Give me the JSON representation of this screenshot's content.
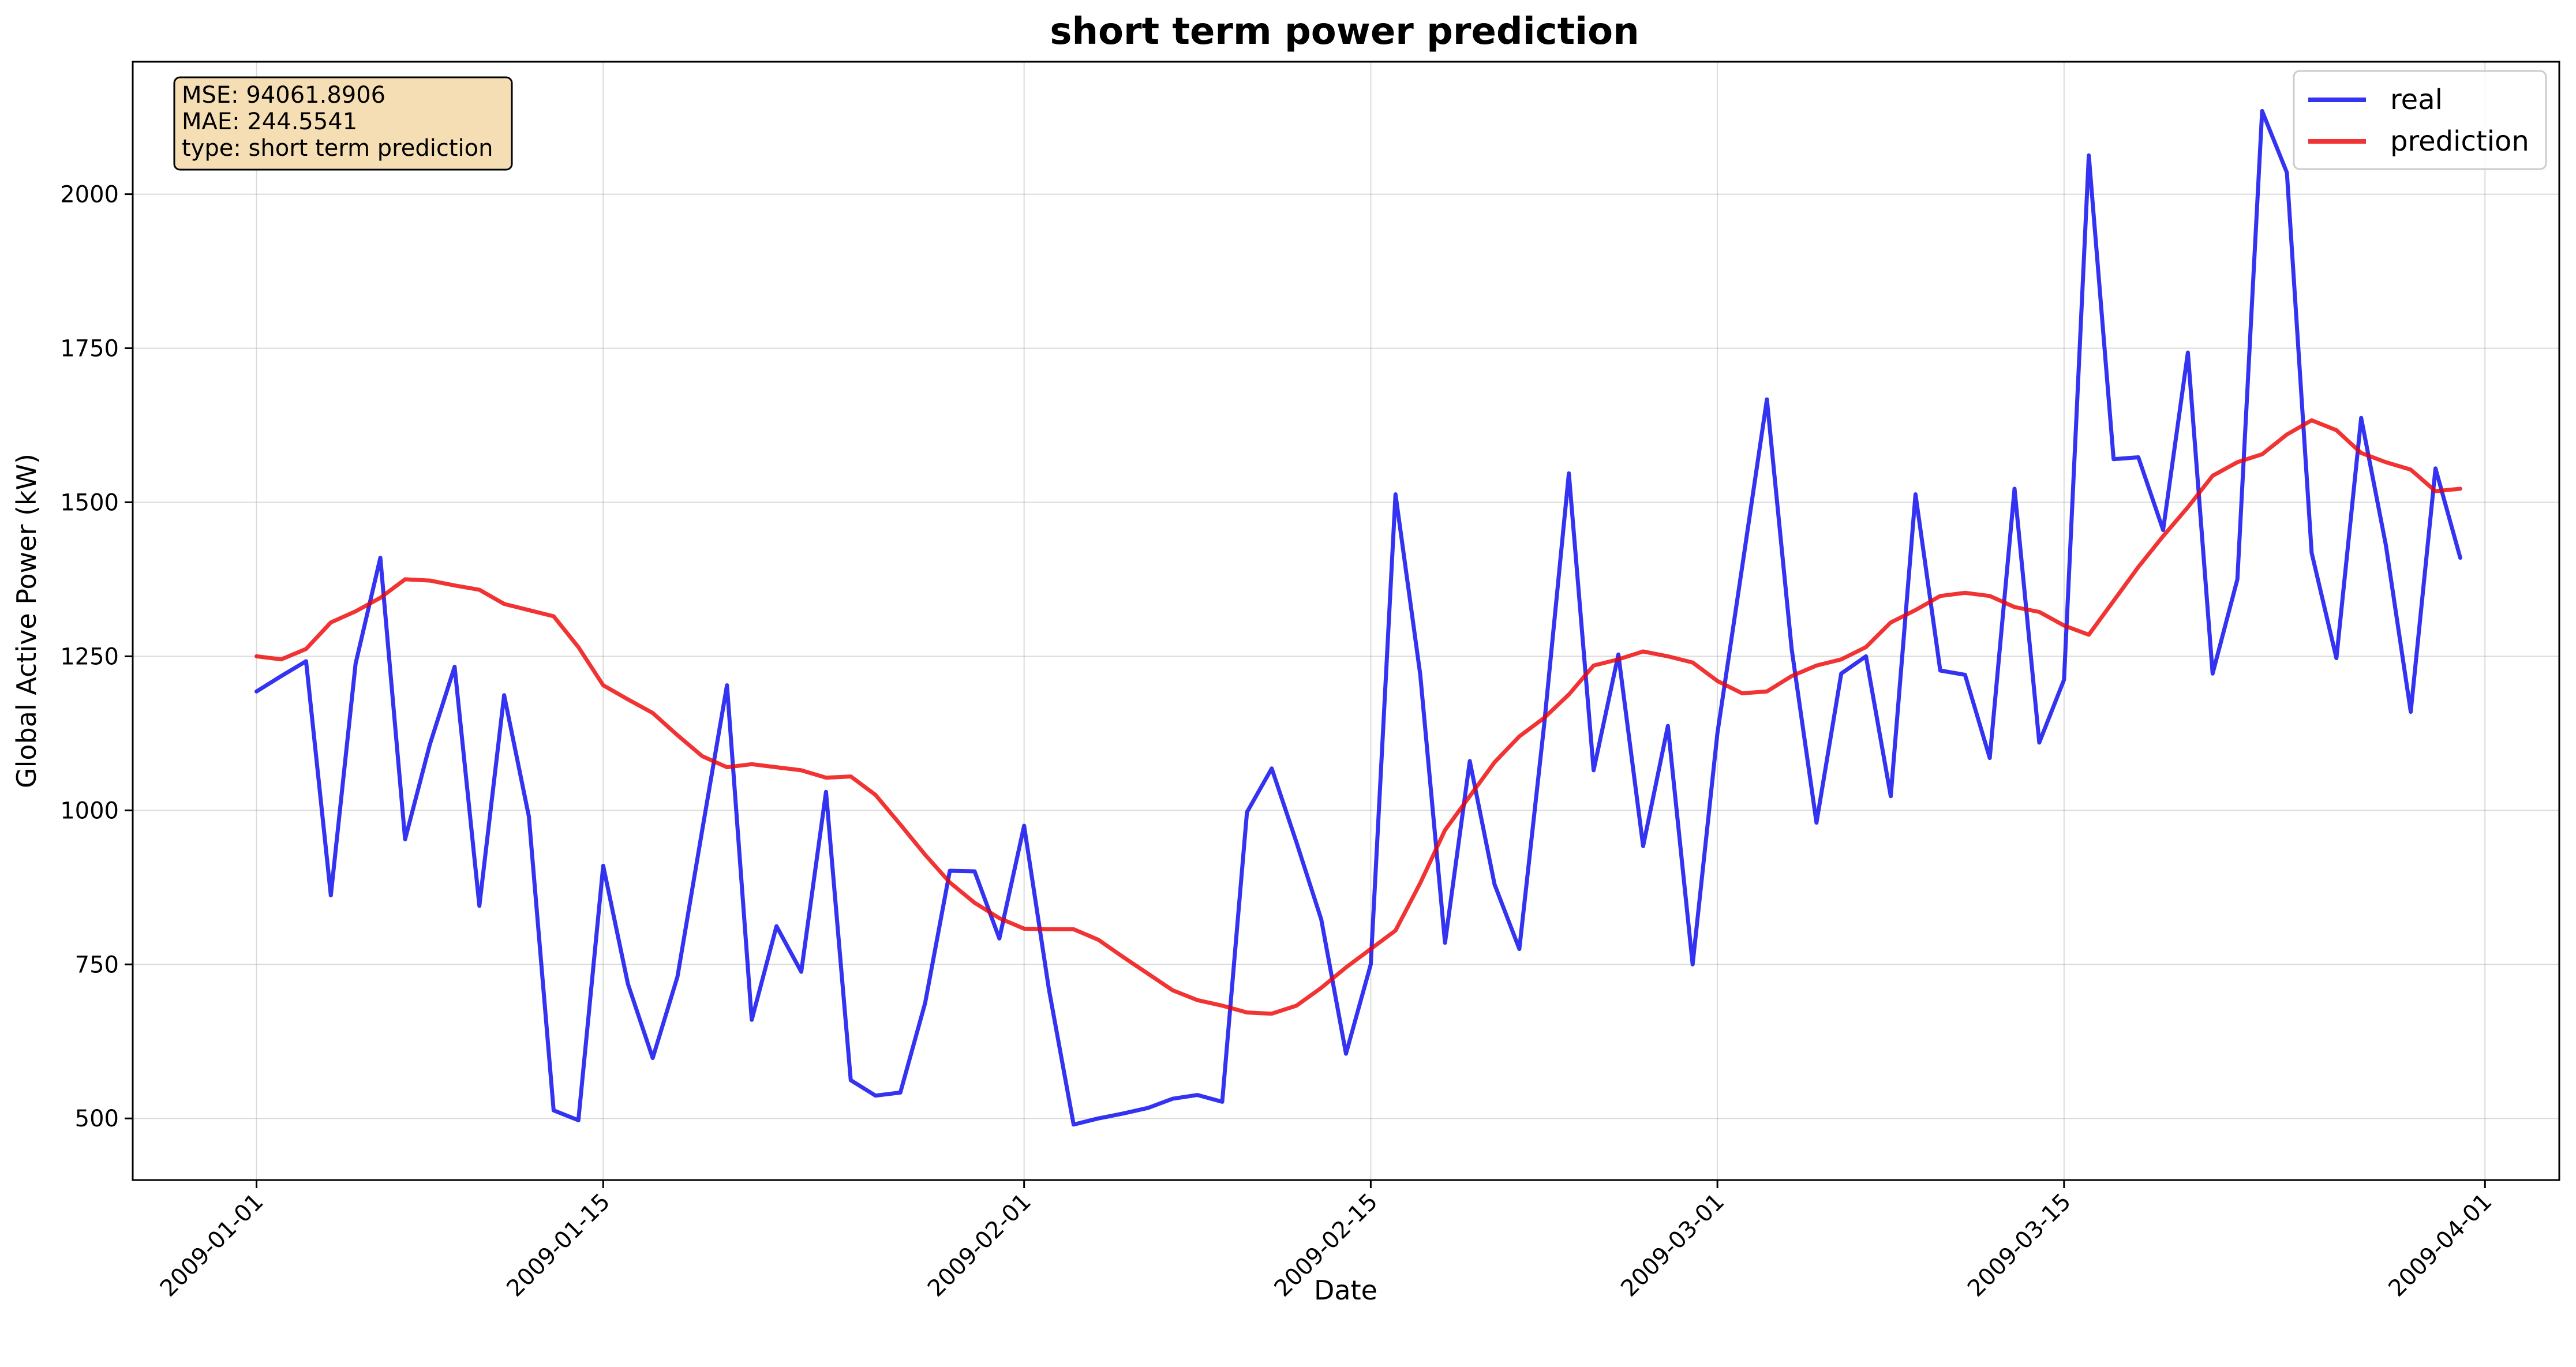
{
  "chart_data": {
    "type": "line",
    "title": "short term power prediction",
    "xlabel": "Date",
    "ylabel": "Global Active Power (kW)",
    "x_start": "2009-01-01",
    "x_end": "2009-03-31",
    "xlim": [
      "2008-12-27",
      "2009-04-04"
    ],
    "ylim": [
      400,
      2215
    ],
    "x_ticks": [
      "2009-01-01",
      "2009-01-15",
      "2009-02-01",
      "2009-02-15",
      "2009-03-01",
      "2009-03-15",
      "2009-04-01"
    ],
    "y_ticks": [
      500,
      750,
      1000,
      1250,
      1500,
      1750,
      2000
    ],
    "grid": true,
    "legend_position": "top-right",
    "annotation": {
      "lines": [
        "MSE: 94061.8906",
        "MAE: 244.5541",
        "type: short term prediction"
      ],
      "position": "top-left",
      "background": "#f5deb3"
    },
    "series": [
      {
        "name": "real",
        "color": "#0000ee",
        "values": [
          1193,
          1218,
          1242,
          862,
          1238,
          1410,
          953,
          1107,
          1233,
          845,
          1187,
          990,
          513,
          497,
          910,
          718,
          598,
          730,
          968,
          1203,
          660,
          812,
          738,
          1030,
          562,
          537,
          542,
          687,
          902,
          901,
          792,
          975,
          710,
          490,
          500,
          508,
          517,
          532,
          538,
          527,
          997,
          1068,
          948,
          823,
          605,
          750,
          1513,
          1220,
          785,
          1080,
          880,
          775,
          1138,
          1547,
          1065,
          1253,
          942,
          1137,
          750,
          1125,
          1395,
          1667,
          1262,
          980,
          1222,
          1250,
          1023,
          1513,
          1227,
          1220,
          1085,
          1522,
          1110,
          1212,
          2063,
          1570,
          1573,
          1455,
          1743,
          1222,
          1375,
          2135,
          2035,
          1418,
          1247,
          1637,
          1430,
          1160,
          1555,
          1410
        ]
      },
      {
        "name": "prediction",
        "color": "#ee0000",
        "values": [
          1250,
          1245,
          1262,
          1305,
          1323,
          1345,
          1375,
          1373,
          1365,
          1358,
          1335,
          1325,
          1315,
          1265,
          1203,
          1180,
          1158,
          1122,
          1088,
          1070,
          1075,
          1070,
          1065,
          1053,
          1055,
          1025,
          977,
          928,
          883,
          850,
          825,
          808,
          807,
          807,
          790,
          762,
          735,
          708,
          692,
          683,
          672,
          670,
          683,
          712,
          745,
          775,
          805,
          882,
          968,
          1023,
          1078,
          1120,
          1150,
          1188,
          1235,
          1245,
          1258,
          1250,
          1240,
          1210,
          1190,
          1193,
          1218,
          1235,
          1245,
          1265,
          1305,
          1325,
          1348,
          1353,
          1348,
          1330,
          1322,
          1300,
          1285,
          1340,
          1395,
          1445,
          1492,
          1543,
          1565,
          1578,
          1610,
          1633,
          1617,
          1580,
          1565,
          1553,
          1518,
          1522
        ]
      }
    ]
  }
}
